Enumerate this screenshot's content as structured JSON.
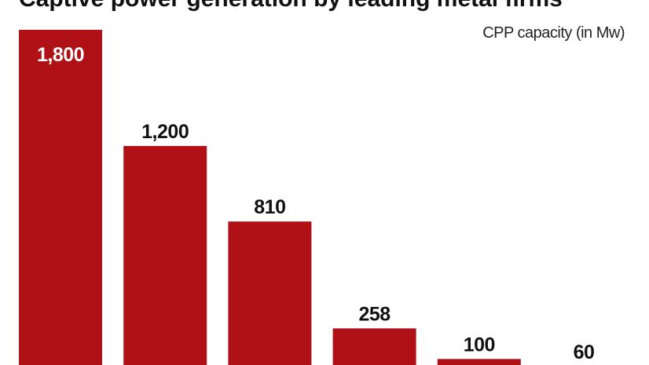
{
  "chart_data": {
    "type": "bar",
    "title": "Captive power generation by leading metal firms",
    "subtitle": "CPP capacity (in Mw)",
    "values": [
      1800,
      1200,
      810,
      258,
      100,
      60
    ],
    "value_labels": [
      "1,800",
      "1,200",
      "810",
      "258",
      "100",
      "60"
    ],
    "color": "#b01116"
  }
}
